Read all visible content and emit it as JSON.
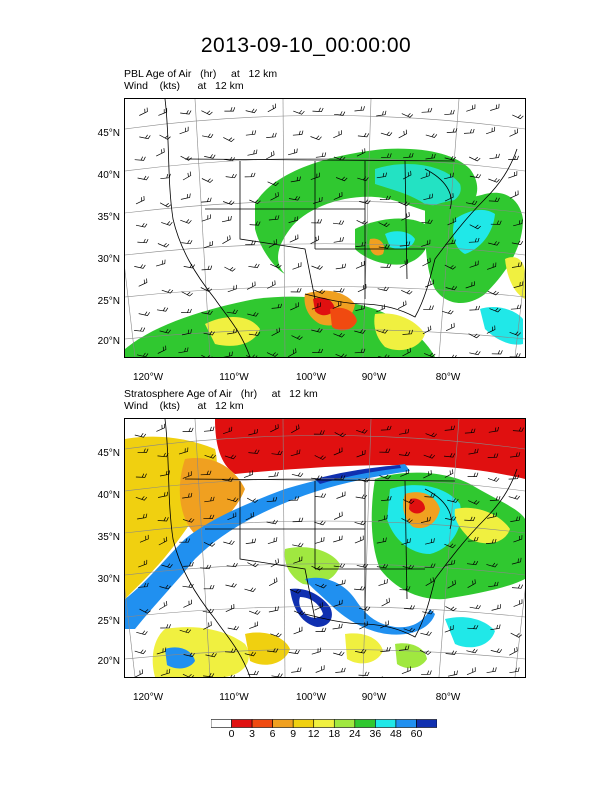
{
  "title": "2013-09-10_00:00:00",
  "panels": [
    {
      "line1": "PBL Age of Air   (hr)     at   12 km",
      "line2": "Wind    (kts)      at   12 km"
    },
    {
      "line1": "Stratosphere Age of Air   (hr)     at   12 km",
      "line2": "Wind    (kts)      at   12 km"
    }
  ],
  "lat_labels": [
    "45°N",
    "40°N",
    "35°N",
    "30°N",
    "25°N",
    "20°N"
  ],
  "lon_labels": [
    "120°W",
    "110°W",
    "100°W",
    "90°W",
    "80°W"
  ],
  "colorbar": {
    "colors": [
      "#ffffff",
      "#e01010",
      "#f04a10",
      "#f0a020",
      "#f0d010",
      "#f0f040",
      "#a0e840",
      "#30c830",
      "#20e8e8",
      "#2090f0",
      "#1030b0"
    ],
    "labels": [
      "0",
      "3",
      "6",
      "9",
      "12",
      "18",
      "24",
      "36",
      "48",
      "60"
    ]
  }
}
